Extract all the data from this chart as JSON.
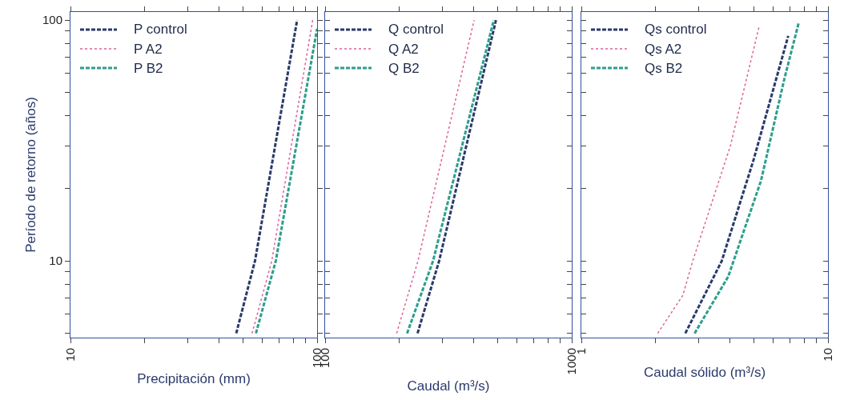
{
  "chart_data": [
    {
      "type": "line",
      "xlabel": "Precipitación (mm)",
      "ylabel": "Período de retorno (años)",
      "log": "xy",
      "xlim": [
        10,
        100
      ],
      "ylim": [
        4.8,
        108
      ],
      "legend": "top left",
      "marker": "none",
      "xticks": [
        10,
        {
          "value": 20,
          "label": null
        },
        {
          "value": 30,
          "label": null
        },
        {
          "value": 40,
          "label": null
        },
        {
          "value": 50,
          "label": null
        },
        {
          "value": 60,
          "label": null
        },
        {
          "value": 70,
          "label": null
        },
        {
          "value": 80,
          "label": null
        },
        {
          "value": 90,
          "label": null
        },
        100
      ],
      "yticks": [
        {
          "value": 5,
          "label": null
        },
        {
          "value": 6,
          "label": null
        },
        {
          "value": 7,
          "label": null
        },
        {
          "value": 8,
          "label": null
        },
        {
          "value": 9,
          "label": null
        },
        10,
        {
          "value": 20,
          "label": null
        },
        {
          "value": 30,
          "label": null
        },
        {
          "value": 40,
          "label": null
        },
        {
          "value": 50,
          "label": null
        },
        {
          "value": 60,
          "label": null
        },
        {
          "value": 70,
          "label": null
        },
        {
          "value": 80,
          "label": null
        },
        {
          "value": 90,
          "label": null
        },
        100
      ],
      "series": [
        {
          "name": "P control",
          "color": "#2b3a6b",
          "line_style": "dashed",
          "x": [
            47,
            56,
            83
          ],
          "values": [
            5,
            10,
            100
          ]
        },
        {
          "name": "P A2",
          "color": "#e0609c",
          "line_style": "dotted",
          "x": [
            54.5,
            65.5,
            96
          ],
          "values": [
            5,
            10,
            100
          ]
        },
        {
          "name": "P B2",
          "color": "#2e9e8c",
          "line_style": "dashed",
          "x": [
            56.5,
            68,
            100
          ],
          "values": [
            5,
            10,
            92
          ]
        }
      ]
    },
    {
      "type": "line",
      "xlabel": "Caudal (m³/s)",
      "log": "xy",
      "xlim": [
        100,
        1000
      ],
      "ylim": [
        4.8,
        108
      ],
      "legend": "top left",
      "marker": "none",
      "tick_labels": "x",
      "xticks": [
        100,
        {
          "value": 200,
          "label": null
        },
        {
          "value": 300,
          "label": null
        },
        {
          "value": 400,
          "label": null
        },
        {
          "value": 500,
          "label": null
        },
        {
          "value": 600,
          "label": null
        },
        {
          "value": 700,
          "label": null
        },
        {
          "value": 800,
          "label": null
        },
        {
          "value": 900,
          "label": null
        },
        1000
      ],
      "series": [
        {
          "name": "Q control",
          "color": "#2b3a6b",
          "line_style": "dashed",
          "x": [
            237,
            290,
            493
          ],
          "values": [
            5,
            10,
            100
          ]
        },
        {
          "name": "Q A2",
          "color": "#e0609c",
          "line_style": "dotted",
          "x": [
            195,
            238,
            402
          ],
          "values": [
            5,
            10,
            100
          ]
        },
        {
          "name": "Q B2",
          "color": "#2e9e8c",
          "line_style": "dashed",
          "x": [
            215,
            274,
            483
          ],
          "values": [
            5,
            10,
            100
          ]
        }
      ]
    },
    {
      "type": "line",
      "xlabel": "Caudal sólido (m³/s)",
      "log": "xy",
      "xlim": [
        1,
        10
      ],
      "ylim": [
        4.8,
        108
      ],
      "legend": "top left",
      "marker": "none",
      "tick_labels": "x",
      "xticks": [
        1,
        {
          "value": 2,
          "label": null
        },
        {
          "value": 3,
          "label": null
        },
        {
          "value": 4,
          "label": null
        },
        {
          "value": 5,
          "label": null
        },
        {
          "value": 6,
          "label": null
        },
        {
          "value": 7,
          "label": null
        },
        {
          "value": 8,
          "label": null
        },
        {
          "value": 9,
          "label": null
        },
        10
      ],
      "series": [
        {
          "name": "Qs control",
          "color": "#2b3a6b",
          "line_style": "dashed",
          "x": [
            2.64,
            3.71,
            5.0,
            6.9
          ],
          "values": [
            5,
            10,
            26.4,
            86
          ]
        },
        {
          "name": "Qs A2",
          "color": "#e0609c",
          "line_style": "dotted",
          "x": [
            2.04,
            2.58,
            2.83,
            4.02,
            5.27
          ],
          "values": [
            5,
            7.2,
            10,
            30,
            95
          ]
        },
        {
          "name": "Qs B2",
          "color": "#2e9e8c",
          "line_style": "dashed",
          "x": [
            2.88,
            3.94,
            5.35,
            6.65,
            7.6
          ],
          "values": [
            5,
            8.6,
            21.5,
            56.8,
            97
          ]
        }
      ]
    }
  ]
}
